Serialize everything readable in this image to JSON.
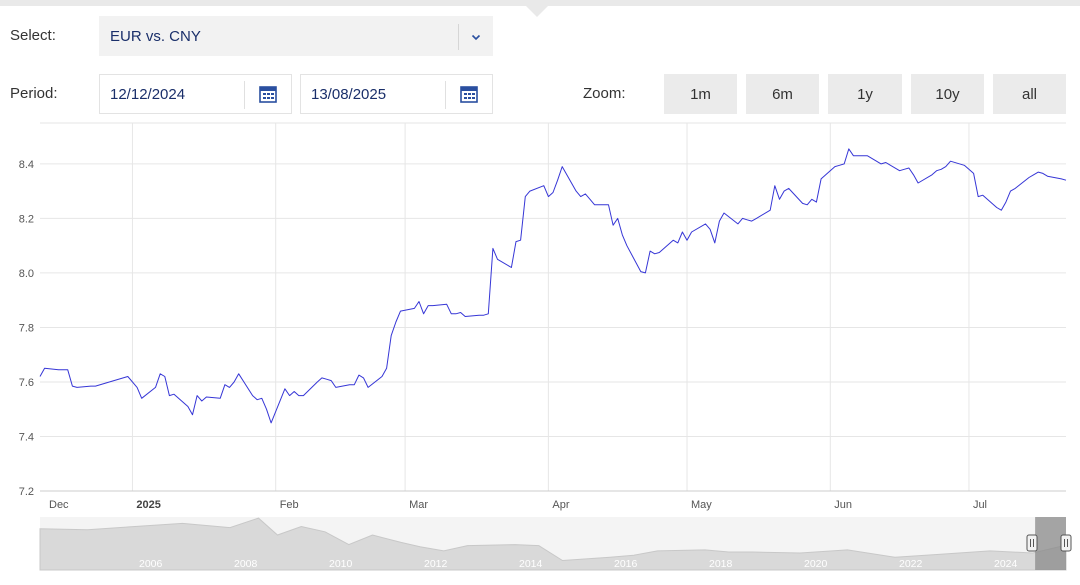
{
  "controls": {
    "select_label": "Select:",
    "select_value": "EUR vs. CNY",
    "period_label": "Period:",
    "date_from": "12/12/2024",
    "date_to": "13/08/2025",
    "zoom_label": "Zoom:",
    "zoom_options": [
      "1m",
      "6m",
      "1y",
      "10y",
      "all"
    ]
  },
  "colors": {
    "accent": "#2a4fa0",
    "series_line": "#3636d6",
    "navigator_fill": "#d9d9d9",
    "navigator_selected": "#8a8a8a"
  },
  "icons": {
    "select_arrow": "chevron-down-icon",
    "date_picker": "calendar-icon"
  },
  "chart_data": {
    "type": "line",
    "series": [
      {
        "points": [
          [
            "2024-12-12",
            7.62
          ],
          [
            "2024-12-13",
            7.65
          ],
          [
            "2024-12-16",
            7.645
          ],
          [
            "2024-12-17",
            7.645
          ],
          [
            "2024-12-18",
            7.645
          ],
          [
            "2024-12-19",
            7.585
          ],
          [
            "2024-12-20",
            7.58
          ],
          [
            "2024-12-23",
            7.585
          ],
          [
            "2024-12-24",
            7.585
          ],
          [
            "2024-12-27",
            7.6
          ],
          [
            "2024-12-30",
            7.615
          ],
          [
            "2024-12-31",
            7.62
          ],
          [
            "2025-01-02",
            7.58
          ],
          [
            "2025-01-03",
            7.54
          ],
          [
            "2025-01-06",
            7.58
          ],
          [
            "2025-01-07",
            7.63
          ],
          [
            "2025-01-08",
            7.62
          ],
          [
            "2025-01-09",
            7.55
          ],
          [
            "2025-01-10",
            7.555
          ],
          [
            "2025-01-13",
            7.51
          ],
          [
            "2025-01-14",
            7.48
          ],
          [
            "2025-01-15",
            7.55
          ],
          [
            "2025-01-16",
            7.53
          ],
          [
            "2025-01-17",
            7.545
          ],
          [
            "2025-01-20",
            7.54
          ],
          [
            "2025-01-21",
            7.59
          ],
          [
            "2025-01-22",
            7.58
          ],
          [
            "2025-01-23",
            7.6
          ],
          [
            "2025-01-24",
            7.63
          ],
          [
            "2025-01-27",
            7.55
          ],
          [
            "2025-01-28",
            7.535
          ],
          [
            "2025-01-29",
            7.54
          ],
          [
            "2025-01-30",
            7.5
          ],
          [
            "2025-01-31",
            7.45
          ],
          [
            "2025-02-03",
            7.575
          ],
          [
            "2025-02-04",
            7.55
          ],
          [
            "2025-02-05",
            7.565
          ],
          [
            "2025-02-06",
            7.55
          ],
          [
            "2025-02-07",
            7.55
          ],
          [
            "2025-02-10",
            7.6
          ],
          [
            "2025-02-11",
            7.615
          ],
          [
            "2025-02-12",
            7.61
          ],
          [
            "2025-02-13",
            7.605
          ],
          [
            "2025-02-14",
            7.58
          ],
          [
            "2025-02-17",
            7.59
          ],
          [
            "2025-02-18",
            7.59
          ],
          [
            "2025-02-19",
            7.625
          ],
          [
            "2025-02-20",
            7.615
          ],
          [
            "2025-02-21",
            7.58
          ],
          [
            "2025-02-24",
            7.62
          ],
          [
            "2025-02-25",
            7.65
          ],
          [
            "2025-02-26",
            7.77
          ],
          [
            "2025-02-27",
            7.82
          ],
          [
            "2025-02-28",
            7.86
          ],
          [
            "2025-03-03",
            7.87
          ],
          [
            "2025-03-04",
            7.895
          ],
          [
            "2025-03-05",
            7.85
          ],
          [
            "2025-03-06",
            7.88
          ],
          [
            "2025-03-07",
            7.88
          ],
          [
            "2025-03-10",
            7.885
          ],
          [
            "2025-03-11",
            7.85
          ],
          [
            "2025-03-12",
            7.85
          ],
          [
            "2025-03-13",
            7.855
          ],
          [
            "2025-03-14",
            7.84
          ],
          [
            "2025-03-17",
            7.845
          ],
          [
            "2025-03-18",
            7.845
          ],
          [
            "2025-03-19",
            7.85
          ],
          [
            "2025-03-20",
            8.09
          ],
          [
            "2025-03-21",
            8.05
          ],
          [
            "2025-03-24",
            8.02
          ],
          [
            "2025-03-25",
            8.115
          ],
          [
            "2025-03-26",
            8.12
          ],
          [
            "2025-03-27",
            8.28
          ],
          [
            "2025-03-28",
            8.3
          ],
          [
            "2025-03-31",
            8.32
          ],
          [
            "2025-04-01",
            8.28
          ],
          [
            "2025-04-02",
            8.295
          ],
          [
            "2025-04-03",
            8.34
          ],
          [
            "2025-04-04",
            8.39
          ],
          [
            "2025-04-07",
            8.3
          ],
          [
            "2025-04-08",
            8.28
          ],
          [
            "2025-04-09",
            8.29
          ],
          [
            "2025-04-10",
            8.27
          ],
          [
            "2025-04-11",
            8.25
          ],
          [
            "2025-04-14",
            8.25
          ],
          [
            "2025-04-15",
            8.175
          ],
          [
            "2025-04-16",
            8.2
          ],
          [
            "2025-04-17",
            8.14
          ],
          [
            "2025-04-18",
            8.1
          ],
          [
            "2025-04-21",
            8.005
          ],
          [
            "2025-04-22",
            8.0
          ],
          [
            "2025-04-23",
            8.08
          ],
          [
            "2025-04-24",
            8.07
          ],
          [
            "2025-04-25",
            8.075
          ],
          [
            "2025-04-28",
            8.12
          ],
          [
            "2025-04-29",
            8.11
          ],
          [
            "2025-04-30",
            8.15
          ],
          [
            "2025-05-01",
            8.12
          ],
          [
            "2025-05-02",
            8.15
          ],
          [
            "2025-05-05",
            8.18
          ],
          [
            "2025-05-06",
            8.16
          ],
          [
            "2025-05-07",
            8.11
          ],
          [
            "2025-05-08",
            8.19
          ],
          [
            "2025-05-09",
            8.22
          ],
          [
            "2025-05-12",
            8.18
          ],
          [
            "2025-05-13",
            8.2
          ],
          [
            "2025-05-14",
            8.195
          ],
          [
            "2025-05-15",
            8.19
          ],
          [
            "2025-05-16",
            8.2
          ],
          [
            "2025-05-19",
            8.23
          ],
          [
            "2025-05-20",
            8.32
          ],
          [
            "2025-05-21",
            8.27
          ],
          [
            "2025-05-22",
            8.3
          ],
          [
            "2025-05-23",
            8.31
          ],
          [
            "2025-05-26",
            8.255
          ],
          [
            "2025-05-27",
            8.25
          ],
          [
            "2025-05-28",
            8.27
          ],
          [
            "2025-05-29",
            8.26
          ],
          [
            "2025-05-30",
            8.345
          ],
          [
            "2025-06-02",
            8.39
          ],
          [
            "2025-06-03",
            8.395
          ],
          [
            "2025-06-04",
            8.4
          ],
          [
            "2025-06-05",
            8.455
          ],
          [
            "2025-06-06",
            8.43
          ],
          [
            "2025-06-09",
            8.43
          ],
          [
            "2025-06-10",
            8.42
          ],
          [
            "2025-06-11",
            8.41
          ],
          [
            "2025-06-12",
            8.4
          ],
          [
            "2025-06-13",
            8.405
          ],
          [
            "2025-06-16",
            8.375
          ],
          [
            "2025-06-17",
            8.38
          ],
          [
            "2025-06-18",
            8.385
          ],
          [
            "2025-06-19",
            8.36
          ],
          [
            "2025-06-20",
            8.33
          ],
          [
            "2025-06-23",
            8.36
          ],
          [
            "2025-06-24",
            8.375
          ],
          [
            "2025-06-25",
            8.38
          ],
          [
            "2025-06-26",
            8.39
          ],
          [
            "2025-06-27",
            8.41
          ],
          [
            "2025-06-30",
            8.395
          ],
          [
            "2025-07-01",
            8.38
          ],
          [
            "2025-07-02",
            8.365
          ],
          [
            "2025-07-03",
            8.28
          ],
          [
            "2025-07-04",
            8.285
          ],
          [
            "2025-07-07",
            8.24
          ],
          [
            "2025-07-08",
            8.23
          ],
          [
            "2025-07-09",
            8.26
          ],
          [
            "2025-07-10",
            8.3
          ],
          [
            "2025-07-11",
            8.31
          ],
          [
            "2025-07-14",
            8.35
          ],
          [
            "2025-07-15",
            8.36
          ],
          [
            "2025-07-16",
            8.37
          ],
          [
            "2025-07-17",
            8.365
          ],
          [
            "2025-07-18",
            8.355
          ],
          [
            "2025-07-21",
            8.345
          ],
          [
            "2025-07-22",
            8.34
          ]
        ]
      }
    ],
    "x_range": [
      "2024-12-12",
      "2025-07-22"
    ],
    "ylim": [
      7.2,
      8.55
    ],
    "y_ticks": [
      7.2,
      7.4,
      7.6,
      7.8,
      8.0,
      8.2,
      8.4
    ],
    "y_tick_labels": [
      "7.2",
      "7.4",
      "7.6",
      "7.8",
      "8.0",
      "8.2",
      "8.4"
    ],
    "x_ticks": [
      {
        "date": "2024-12-01",
        "label": "Dec",
        "bold": false
      },
      {
        "date": "2025-01-01",
        "label": "2025",
        "bold": true
      },
      {
        "date": "2025-02-01",
        "label": "Feb",
        "bold": false
      },
      {
        "date": "2025-03-01",
        "label": "Mar",
        "bold": false
      },
      {
        "date": "2025-04-01",
        "label": "Apr",
        "bold": false
      },
      {
        "date": "2025-05-01",
        "label": "May",
        "bold": false
      },
      {
        "date": "2025-06-01",
        "label": "Jun",
        "bold": false
      },
      {
        "date": "2025-07-01",
        "label": "Jul",
        "bold": false
      }
    ],
    "grid": true,
    "navigator": {
      "years": [
        "2006",
        "2008",
        "2010",
        "2012",
        "2014",
        "2016",
        "2018",
        "2020",
        "2022",
        "2024"
      ],
      "series_approx": [
        [
          2004,
          9.9
        ],
        [
          2005,
          9.8
        ],
        [
          2006,
          10.1
        ],
        [
          2007,
          10.4
        ],
        [
          2008,
          10.0
        ],
        [
          2008.6,
          10.9
        ],
        [
          2009,
          9.3
        ],
        [
          2009.5,
          10.1
        ],
        [
          2010,
          9.6
        ],
        [
          2010.5,
          8.4
        ],
        [
          2011,
          9.3
        ],
        [
          2011.6,
          8.6
        ],
        [
          2012,
          8.2
        ],
        [
          2012.5,
          7.8
        ],
        [
          2013,
          8.3
        ],
        [
          2014,
          8.4
        ],
        [
          2014.5,
          8.3
        ],
        [
          2015,
          6.9
        ],
        [
          2016,
          7.2
        ],
        [
          2016.5,
          7.4
        ],
        [
          2017,
          7.8
        ],
        [
          2018,
          7.9
        ],
        [
          2018.5,
          7.7
        ],
        [
          2019,
          7.7
        ],
        [
          2020,
          7.6
        ],
        [
          2021,
          7.9
        ],
        [
          2022,
          7.2
        ],
        [
          2023,
          7.5
        ],
        [
          2024,
          7.8
        ],
        [
          2024.9,
          7.6
        ],
        [
          2025.6,
          8.35
        ]
      ]
    }
  }
}
